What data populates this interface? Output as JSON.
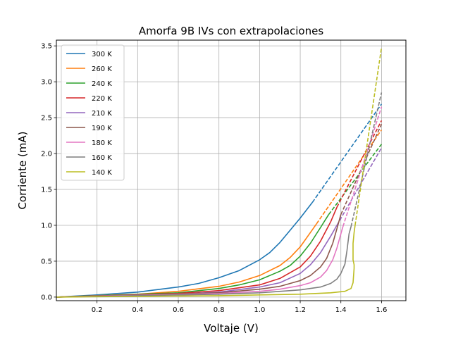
{
  "chart_data": {
    "type": "line",
    "title": "Amorfa 9B IVs con extrapolaciones",
    "xlabel": "Voltaje (V)",
    "ylabel": "Corriente (mA)",
    "xlim": [
      0.0,
      1.72
    ],
    "ylim": [
      -0.05,
      3.58
    ],
    "xticks": [
      0.2,
      0.4,
      0.6,
      0.8,
      1.0,
      1.2,
      1.4,
      1.6
    ],
    "xtick_labels": [
      "0.2",
      "0.4",
      "0.6",
      "0.8",
      "1.0",
      "1.2",
      "1.4",
      "1.6"
    ],
    "yticks": [
      0.0,
      0.5,
      1.0,
      1.5,
      2.0,
      2.5,
      3.0,
      3.5
    ],
    "ytick_labels": [
      "0.0",
      "0.5",
      "1.0",
      "1.5",
      "2.0",
      "2.5",
      "3.0",
      "3.5"
    ],
    "grid": true,
    "legend_position": "top-left",
    "series": [
      {
        "name": "300 K",
        "color": "#1f77b4",
        "measured": [
          [
            0.0,
            0.0
          ],
          [
            0.2,
            0.03
          ],
          [
            0.4,
            0.07
          ],
          [
            0.6,
            0.14
          ],
          [
            0.7,
            0.19
          ],
          [
            0.8,
            0.27
          ],
          [
            0.9,
            0.37
          ],
          [
            1.0,
            0.52
          ],
          [
            1.05,
            0.62
          ],
          [
            1.1,
            0.76
          ],
          [
            1.15,
            0.93
          ],
          [
            1.2,
            1.1
          ],
          [
            1.26,
            1.32
          ]
        ],
        "extrapolated": [
          [
            1.26,
            1.32
          ],
          [
            1.6,
            2.69
          ]
        ]
      },
      {
        "name": "260 K",
        "color": "#ff7f0e",
        "measured": [
          [
            0.0,
            0.0
          ],
          [
            0.4,
            0.04
          ],
          [
            0.6,
            0.08
          ],
          [
            0.8,
            0.15
          ],
          [
            0.9,
            0.21
          ],
          [
            1.0,
            0.3
          ],
          [
            1.1,
            0.44
          ],
          [
            1.15,
            0.55
          ],
          [
            1.2,
            0.7
          ],
          [
            1.25,
            0.9
          ],
          [
            1.28,
            1.02
          ]
        ],
        "extrapolated": [
          [
            1.28,
            1.02
          ],
          [
            1.6,
            2.33
          ]
        ]
      },
      {
        "name": "240 K",
        "color": "#2ca02c",
        "measured": [
          [
            0.0,
            0.0
          ],
          [
            0.6,
            0.06
          ],
          [
            0.8,
            0.12
          ],
          [
            0.9,
            0.17
          ],
          [
            1.0,
            0.24
          ],
          [
            1.1,
            0.36
          ],
          [
            1.15,
            0.44
          ],
          [
            1.2,
            0.57
          ],
          [
            1.25,
            0.75
          ],
          [
            1.3,
            0.97
          ],
          [
            1.34,
            1.15
          ]
        ],
        "extrapolated": [
          [
            1.34,
            1.15
          ],
          [
            1.6,
            2.13
          ]
        ]
      },
      {
        "name": "220 K",
        "color": "#d62728",
        "measured": [
          [
            0.0,
            0.0
          ],
          [
            0.6,
            0.05
          ],
          [
            0.8,
            0.09
          ],
          [
            1.0,
            0.17
          ],
          [
            1.1,
            0.26
          ],
          [
            1.2,
            0.42
          ],
          [
            1.25,
            0.57
          ],
          [
            1.3,
            0.78
          ],
          [
            1.35,
            1.05
          ],
          [
            1.38,
            1.25
          ]
        ],
        "extrapolated": [
          [
            1.38,
            1.25
          ],
          [
            1.6,
            2.46
          ]
        ]
      },
      {
        "name": "210 K",
        "color": "#9467bd",
        "measured": [
          [
            0.0,
            0.0
          ],
          [
            0.6,
            0.04
          ],
          [
            0.8,
            0.07
          ],
          [
            1.0,
            0.14
          ],
          [
            1.1,
            0.2
          ],
          [
            1.2,
            0.33
          ],
          [
            1.25,
            0.45
          ],
          [
            1.3,
            0.62
          ],
          [
            1.35,
            0.85
          ],
          [
            1.38,
            1.0
          ]
        ],
        "extrapolated": [
          [
            1.38,
            1.0
          ],
          [
            1.6,
            2.08
          ]
        ]
      },
      {
        "name": "190 K",
        "color": "#8c564b",
        "measured": [
          [
            0.0,
            0.0
          ],
          [
            0.8,
            0.06
          ],
          [
            1.0,
            0.11
          ],
          [
            1.1,
            0.15
          ],
          [
            1.2,
            0.23
          ],
          [
            1.25,
            0.3
          ],
          [
            1.3,
            0.42
          ],
          [
            1.33,
            0.54
          ],
          [
            1.36,
            0.75
          ],
          [
            1.38,
            0.95
          ],
          [
            1.4,
            1.15
          ]
        ],
        "extrapolated": [
          [
            1.4,
            1.15
          ],
          [
            1.6,
            2.41
          ]
        ]
      },
      {
        "name": "180 K",
        "color": "#e377c2",
        "measured": [
          [
            0.0,
            0.0
          ],
          [
            0.8,
            0.05
          ],
          [
            1.0,
            0.08
          ],
          [
            1.1,
            0.11
          ],
          [
            1.2,
            0.16
          ],
          [
            1.25,
            0.2
          ],
          [
            1.3,
            0.28
          ],
          [
            1.33,
            0.37
          ],
          [
            1.36,
            0.52
          ],
          [
            1.38,
            0.68
          ],
          [
            1.4,
            0.88
          ],
          [
            1.41,
            0.98
          ]
        ],
        "extrapolated": [
          [
            1.41,
            0.98
          ],
          [
            1.6,
            2.65
          ]
        ]
      },
      {
        "name": "160 K",
        "color": "#7f7f7f",
        "measured": [
          [
            0.0,
            0.0
          ],
          [
            0.8,
            0.04
          ],
          [
            1.0,
            0.06
          ],
          [
            1.2,
            0.1
          ],
          [
            1.3,
            0.14
          ],
          [
            1.35,
            0.19
          ],
          [
            1.38,
            0.25
          ],
          [
            1.4,
            0.33
          ],
          [
            1.42,
            0.46
          ],
          [
            1.43,
            0.65
          ],
          [
            1.44,
            0.88
          ],
          [
            1.45,
            0.98
          ]
        ],
        "extrapolated": [
          [
            1.45,
            0.98
          ],
          [
            1.6,
            2.85
          ]
        ]
      },
      {
        "name": "140 K",
        "color": "#bcbd22",
        "measured": [
          [
            0.0,
            0.0
          ],
          [
            0.8,
            0.02
          ],
          [
            1.0,
            0.03
          ],
          [
            1.2,
            0.04
          ],
          [
            1.35,
            0.06
          ],
          [
            1.42,
            0.08
          ],
          [
            1.45,
            0.12
          ],
          [
            1.46,
            0.2
          ],
          [
            1.465,
            0.4
          ],
          [
            1.465,
            0.45
          ],
          [
            1.46,
            0.52
          ],
          [
            1.46,
            0.75
          ],
          [
            1.465,
            0.9
          ],
          [
            1.47,
            1.0
          ]
        ],
        "extrapolated": [
          [
            1.47,
            1.0
          ],
          [
            1.6,
            3.48
          ]
        ]
      }
    ]
  }
}
